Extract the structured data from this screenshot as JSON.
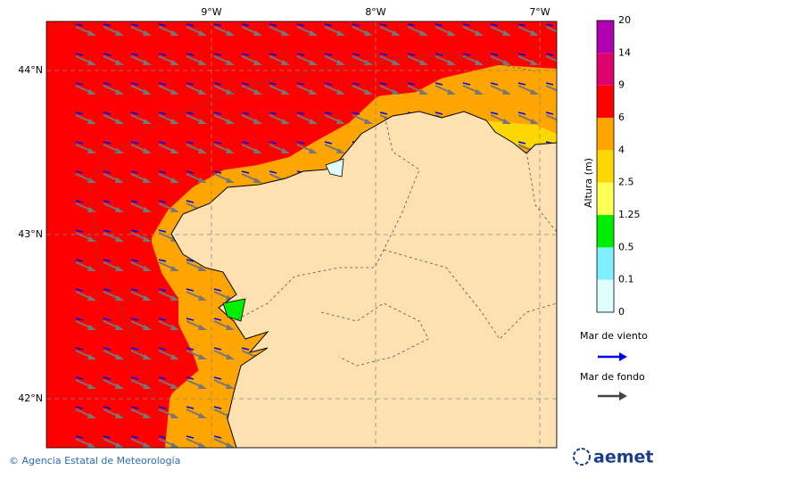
{
  "map": {
    "lon_labels": [
      "9°W",
      "8°W",
      "7°W"
    ],
    "lat_labels": [
      "44°N",
      "43°N",
      "42°N"
    ]
  },
  "legend": {
    "title": "Altura (m)",
    "levels": [
      0,
      0.1,
      0.5,
      1.25,
      2.5,
      4,
      6,
      9,
      14,
      20
    ],
    "wind_sea": "Mar de viento",
    "swell": "Mar de fondo"
  },
  "footer": {
    "credit": "© Agencia Estatal de Meteorología",
    "logo": "aemet"
  }
}
